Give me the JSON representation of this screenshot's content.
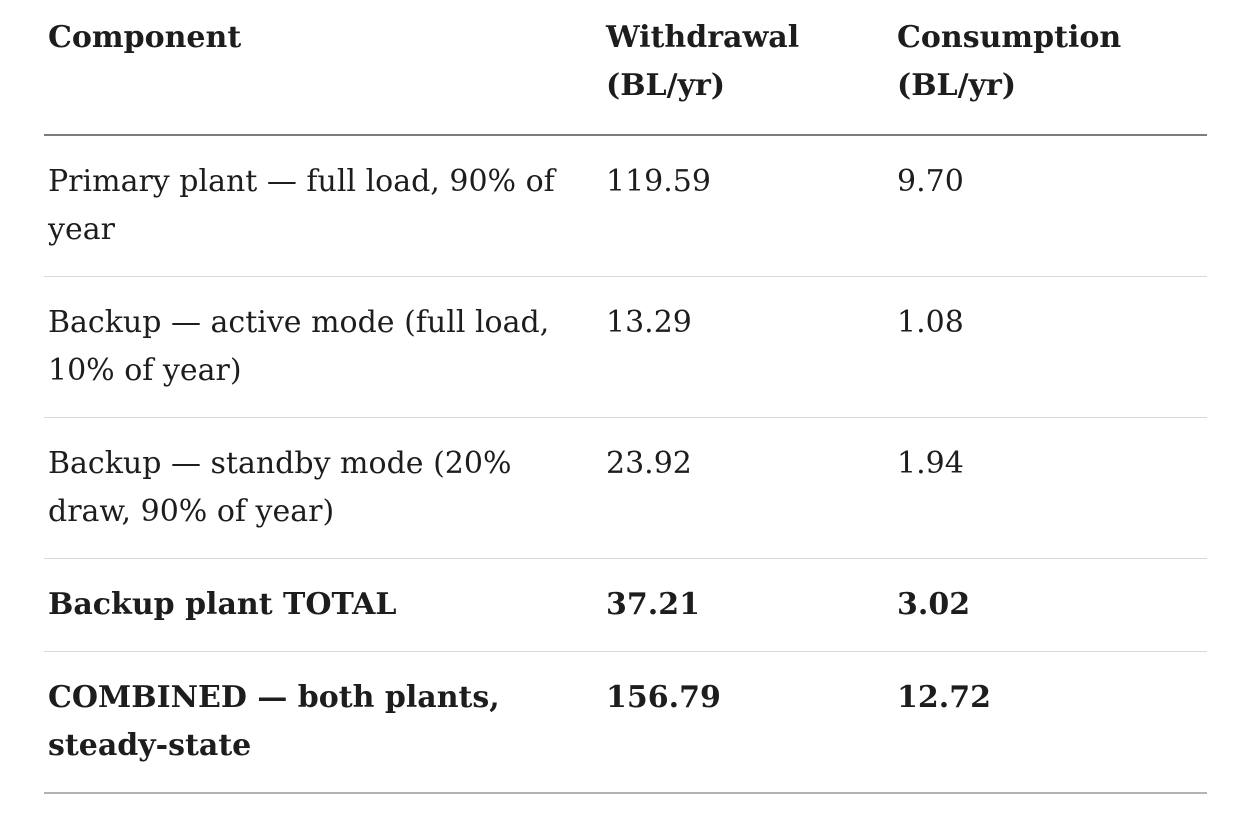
{
  "page": {
    "background_color": "#ffffff",
    "text_color": "#1d1d1d",
    "header_divider_color": "#7d7d7d",
    "row_divider_color": "#d8d8d8",
    "bottom_divider_color": "#b3b3b3"
  },
  "table": {
    "columns": [
      {
        "label": "Component"
      },
      {
        "label": "Withdrawal\n(BL/yr)"
      },
      {
        "label": "Consumption\n(BL/yr)"
      }
    ],
    "rows": [
      {
        "component": "Primary plant — full load, 90% of\nyear",
        "withdrawal": "119.59",
        "consumption": "9.70",
        "emphasis": false
      },
      {
        "component": "Backup — active mode (full load,\n10% of year)",
        "withdrawal": "13.29",
        "consumption": "1.08",
        "emphasis": false
      },
      {
        "component": "Backup — standby mode (20%\ndraw, 90% of year)",
        "withdrawal": "23.92",
        "consumption": "1.94",
        "emphasis": false
      },
      {
        "component": "Backup plant TOTAL",
        "withdrawal": "37.21",
        "consumption": "3.02",
        "emphasis": true
      },
      {
        "component": "COMBINED — both plants,\nsteady-state",
        "withdrawal": "156.79",
        "consumption": "12.72",
        "emphasis": true
      }
    ]
  }
}
